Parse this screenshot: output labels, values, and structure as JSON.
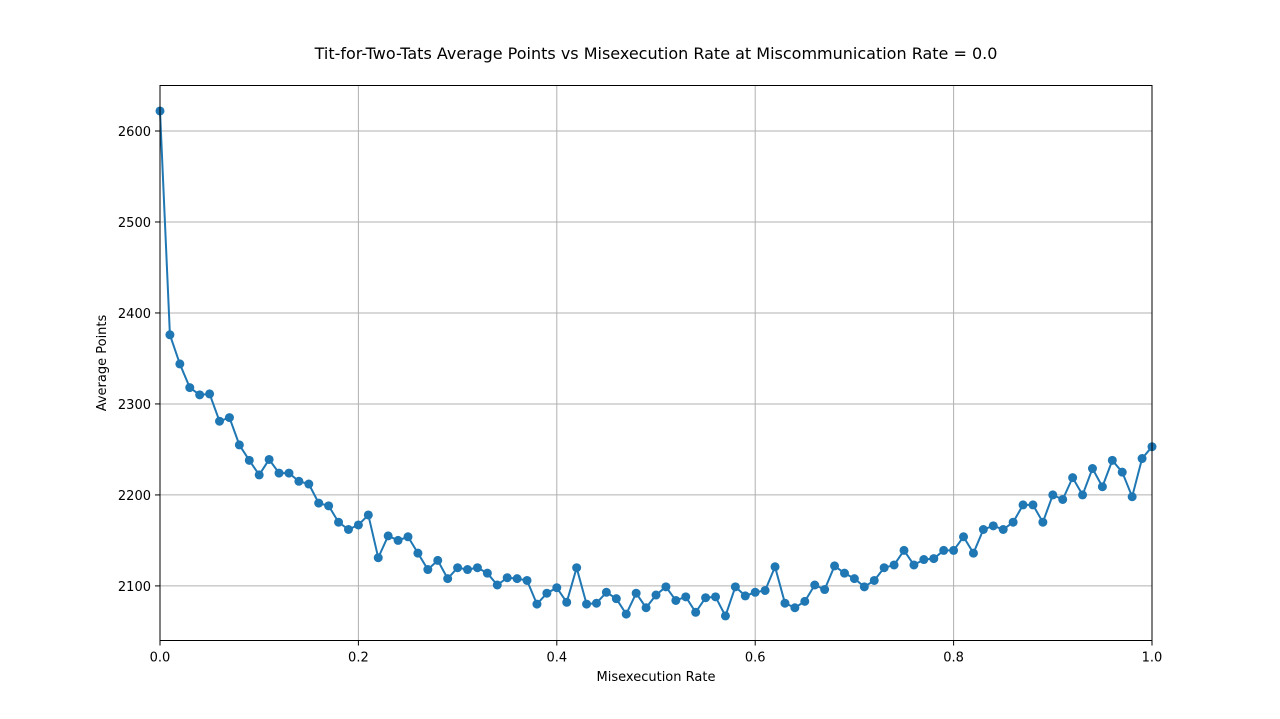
{
  "chart_data": {
    "type": "line",
    "title": "Tit-for-Two-Tats Average Points vs Misexecution Rate at Miscommunication Rate = 0.0",
    "xlabel": "Misexecution Rate",
    "ylabel": "Average Points",
    "xlim": [
      0.0,
      1.0
    ],
    "ylim": [
      2040,
      2650
    ],
    "xticks": [
      0.0,
      0.2,
      0.4,
      0.6,
      0.8,
      1.0
    ],
    "xtick_labels": [
      "0.0",
      "0.2",
      "0.4",
      "0.6",
      "0.8",
      "1.0"
    ],
    "yticks": [
      2100,
      2200,
      2300,
      2400,
      2500,
      2600
    ],
    "ytick_labels": [
      "2100",
      "2200",
      "2300",
      "2400",
      "2500",
      "2600"
    ],
    "grid": true,
    "marker": "circle",
    "color": "#1f77b4",
    "x": [
      0.0,
      0.01,
      0.02,
      0.03,
      0.04,
      0.05,
      0.06,
      0.07,
      0.08,
      0.09,
      0.1,
      0.11,
      0.12,
      0.13,
      0.14,
      0.15,
      0.16,
      0.17,
      0.18,
      0.19,
      0.2,
      0.21,
      0.22,
      0.23,
      0.24,
      0.25,
      0.26,
      0.27,
      0.28,
      0.29,
      0.3,
      0.31,
      0.32,
      0.33,
      0.34,
      0.35,
      0.36,
      0.37,
      0.38,
      0.39,
      0.4,
      0.41,
      0.42,
      0.43,
      0.44,
      0.45,
      0.46,
      0.47,
      0.48,
      0.49,
      0.5,
      0.51,
      0.52,
      0.53,
      0.54,
      0.55,
      0.56,
      0.57,
      0.58,
      0.59,
      0.6,
      0.61,
      0.62,
      0.63,
      0.64,
      0.65,
      0.66,
      0.67,
      0.68,
      0.69,
      0.7,
      0.71,
      0.72,
      0.73,
      0.74,
      0.75,
      0.76,
      0.77,
      0.78,
      0.79,
      0.8,
      0.81,
      0.82,
      0.83,
      0.84,
      0.85,
      0.86,
      0.87,
      0.88,
      0.89,
      0.9,
      0.91,
      0.92,
      0.93,
      0.94,
      0.95,
      0.96,
      0.97,
      0.98,
      0.99,
      1.0
    ],
    "y": [
      2622,
      2376,
      2344,
      2318,
      2310,
      2311,
      2281,
      2285,
      2255,
      2238,
      2222,
      2239,
      2224,
      2224,
      2215,
      2212,
      2191,
      2188,
      2170,
      2162,
      2167,
      2178,
      2131,
      2155,
      2150,
      2154,
      2136,
      2118,
      2128,
      2108,
      2120,
      2118,
      2120,
      2114,
      2101,
      2109,
      2108,
      2106,
      2080,
      2092,
      2098,
      2082,
      2120,
      2080,
      2081,
      2093,
      2086,
      2069,
      2092,
      2076,
      2090,
      2099,
      2084,
      2088,
      2071,
      2087,
      2088,
      2067,
      2099,
      2089,
      2093,
      2095,
      2121,
      2081,
      2076,
      2083,
      2101,
      2096,
      2122,
      2114,
      2108,
      2099,
      2106,
      2120,
      2123,
      2139,
      2123,
      2129,
      2130,
      2139,
      2139,
      2154,
      2136,
      2162,
      2166,
      2162,
      2170,
      2189,
      2189,
      2170,
      2200,
      2195,
      2219,
      2200,
      2229,
      2209,
      2238,
      2225,
      2198,
      2240,
      2253
    ]
  }
}
